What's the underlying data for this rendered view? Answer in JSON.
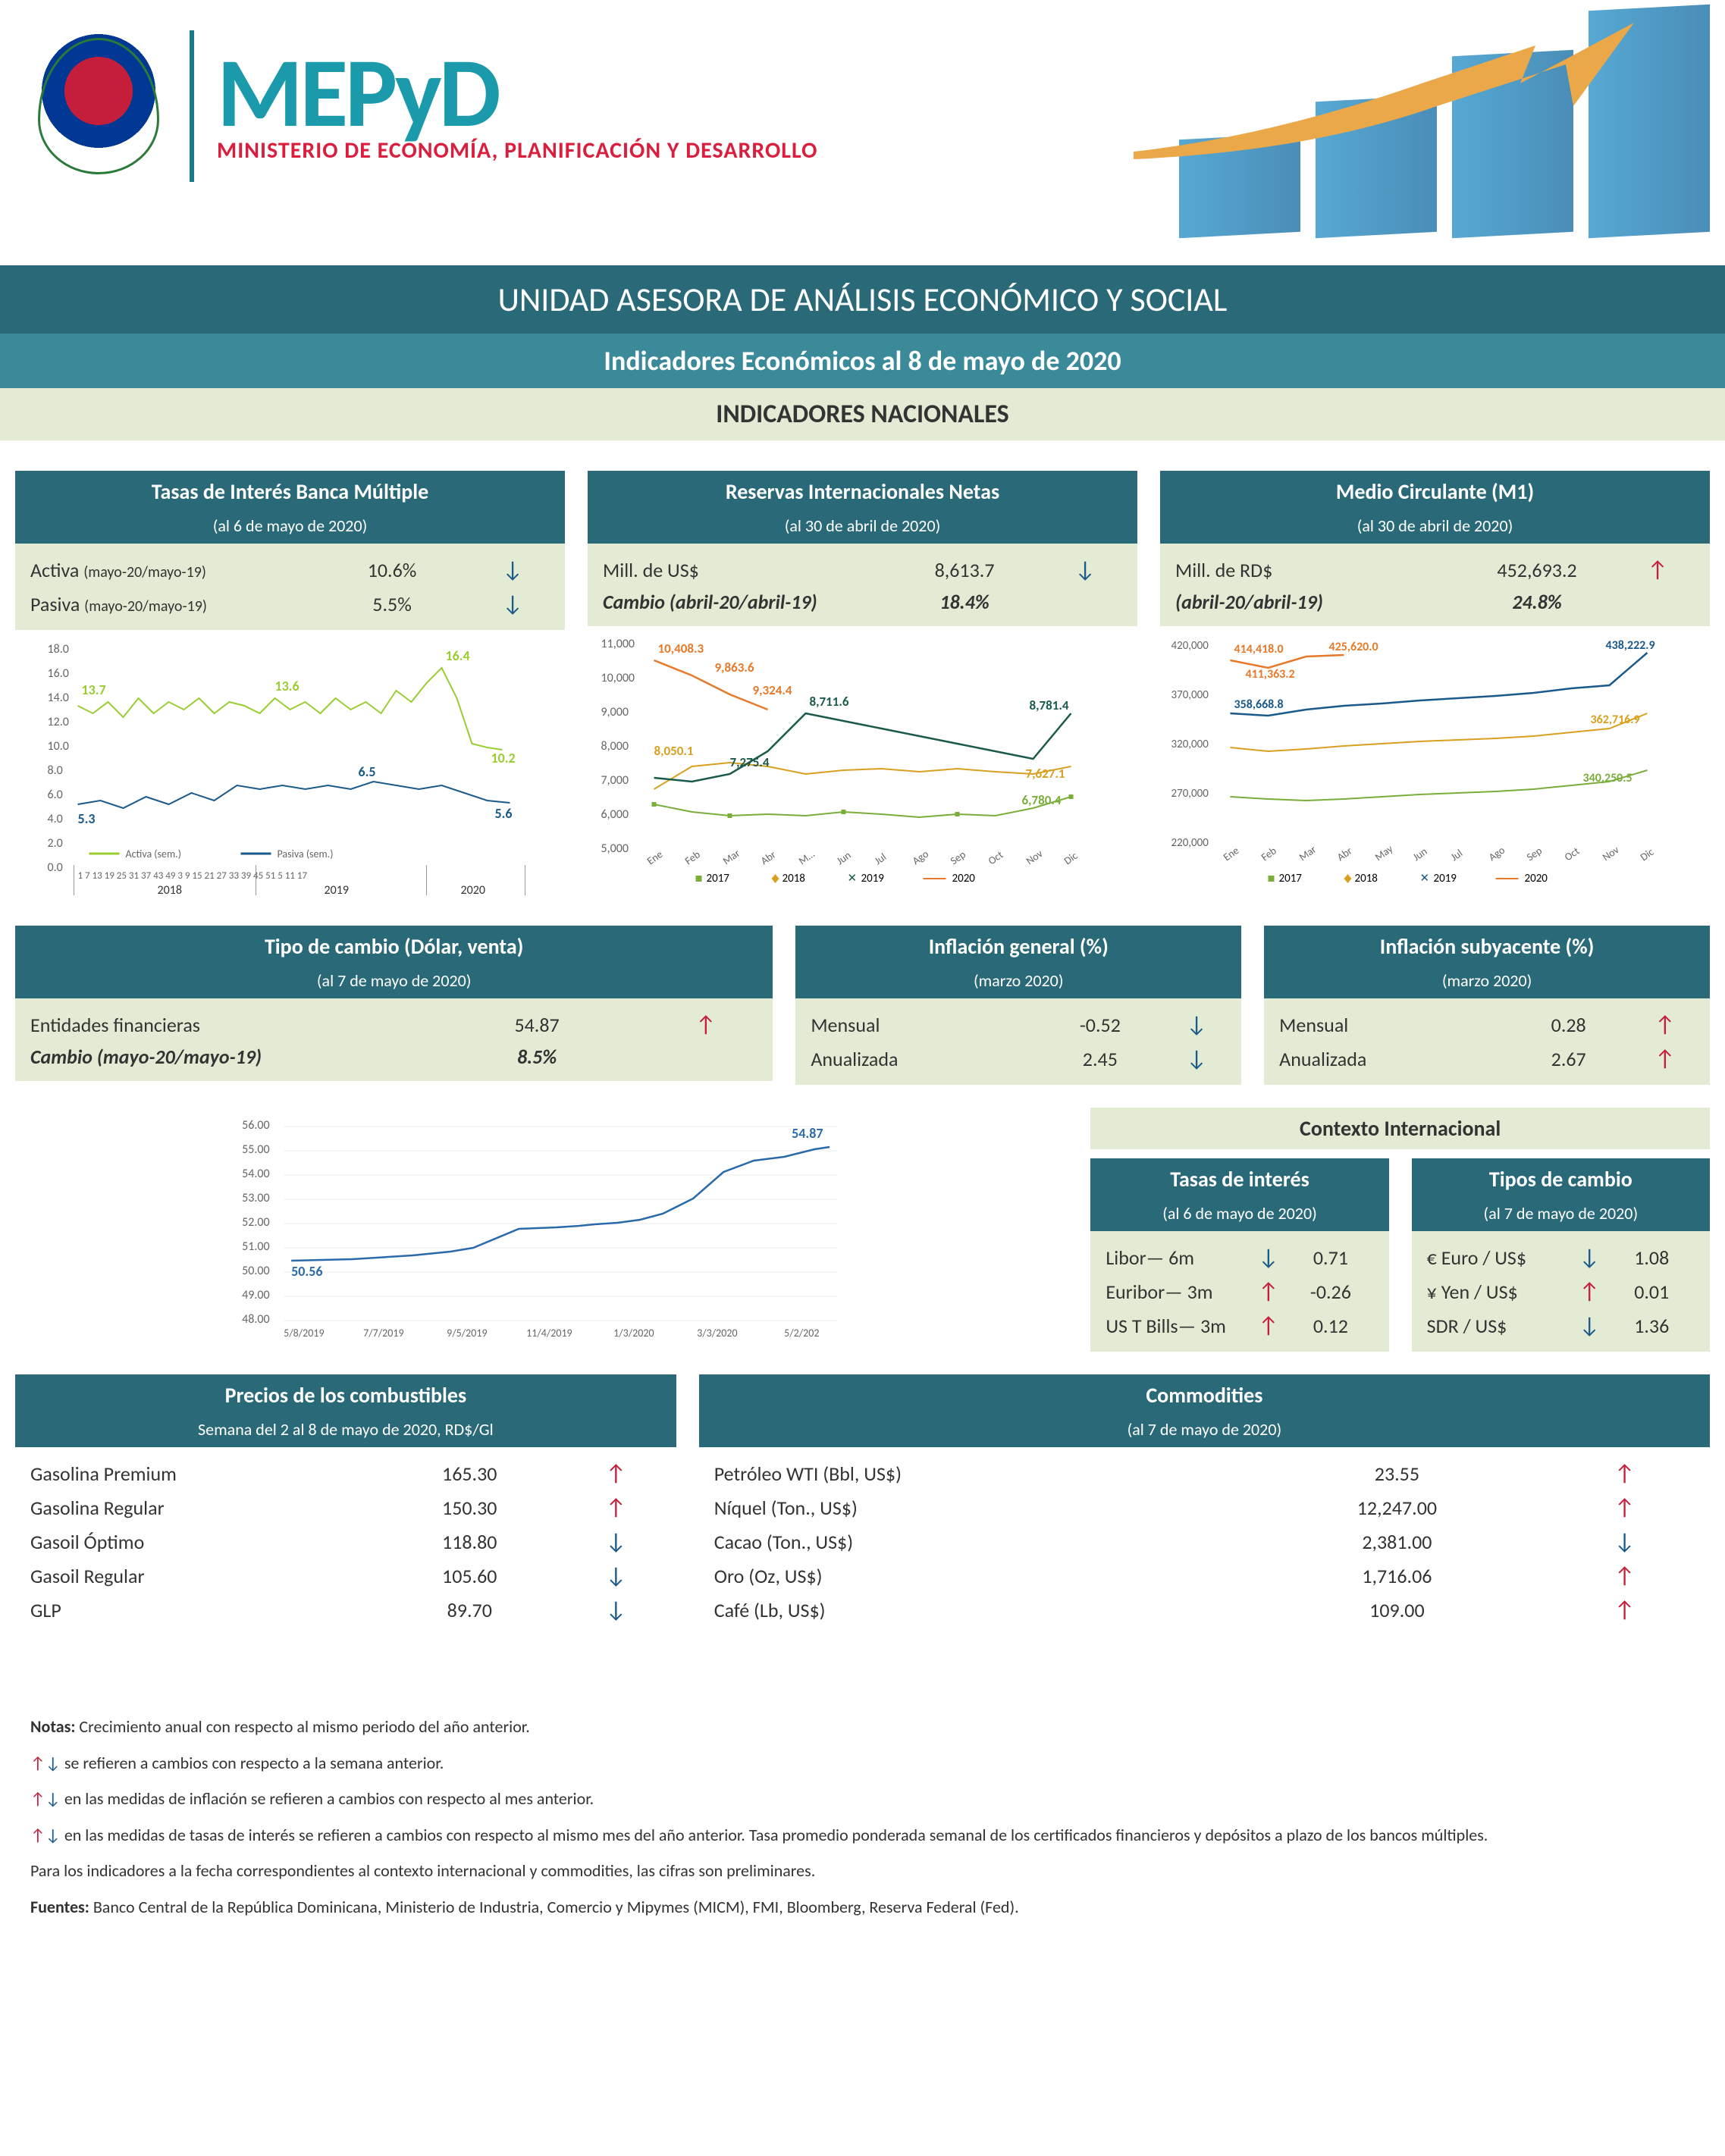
{
  "brand": {
    "main": "MEPyD",
    "sub": "MINISTERIO DE ECONOMÍA, PLANIFICACIÓN Y DESARROLLO"
  },
  "banners": {
    "unit": "UNIDAD ASESORA DE ANÁLISIS ECONÓMICO Y SOCIAL",
    "title": "Indicadores Económicos al  8 de mayo de 2020",
    "section": "INDICADORES NACIONALES",
    "context": "Contexto Internacional"
  },
  "interest": {
    "title": "Tasas de Interés Banca Múltiple",
    "asof": "(al 6 de mayo de 2020)",
    "activa_label": "Activa",
    "activa_period": "(mayo-20/mayo-19)",
    "activa_val": "10.6%",
    "activa_dir": "down",
    "pasiva_label": "Pasiva",
    "pasiva_period": "(mayo-20/mayo-19)",
    "pasiva_val": "5.5%",
    "pasiva_dir": "down",
    "chart": {
      "activa_color": "#9acd32",
      "pasiva_color": "#1a5a8a",
      "y_ticks": [
        "0.0",
        "2.0",
        "4.0",
        "6.0",
        "8.0",
        "10.0",
        "12.0",
        "14.0",
        "16.0",
        "18.0"
      ],
      "x_labels": [
        "1",
        "7",
        "13",
        "19",
        "25",
        "31",
        "37",
        "43",
        "49",
        "3",
        "9",
        "15",
        "21",
        "27",
        "33",
        "39",
        "45",
        "51",
        "5",
        "11",
        "17"
      ],
      "year_labels": [
        "2018",
        "2019",
        "2020"
      ],
      "annotations": {
        "a1": "13.7",
        "a2": "13.6",
        "a3": "16.4",
        "a4": "10.2",
        "p1": "5.3",
        "p2": "6.5",
        "p3": "5.6"
      },
      "legend": {
        "a": "Activa (sem.)",
        "p": "Pasiva (sem.)"
      }
    }
  },
  "reserves": {
    "title": "Reservas Internacionales Netas",
    "asof": "(al 30 de abril de 2020)",
    "row1_label": "Mill. de US$",
    "row1_val": "8,613.7",
    "row1_dir": "down",
    "row2_label": "Cambio (abril-20/abril-19)",
    "row2_val": "18.4%",
    "chart": {
      "y_ticks": [
        "5,000",
        "6,000",
        "7,000",
        "8,000",
        "9,000",
        "10,000",
        "11,000"
      ],
      "x_labels": [
        "Ene",
        "Feb",
        "Mar",
        "Abr",
        "M…",
        "Jun",
        "Jul",
        "Ago",
        "Sep",
        "Oct",
        "Nov",
        "Dic"
      ],
      "series": {
        "2017": {
          "color": "#7aad3a",
          "marker": "square"
        },
        "2018": {
          "color": "#d9a020",
          "marker": "triangle"
        },
        "2019": {
          "color": "#1a5a4a",
          "marker": "x"
        },
        "2020": {
          "color": "#e67a2a",
          "marker": "line"
        }
      },
      "annotations": {
        "a1": "10,408.3",
        "a2": "9,863.6",
        "a3": "9,324.4",
        "a4": "8,050.1",
        "a5": "7,275.4",
        "a6": "8,711.6",
        "a7": "8,781.4",
        "a8": "7,627.1",
        "a9": "6,780.4"
      }
    }
  },
  "m1": {
    "title": "Medio Circulante (M1)",
    "asof": "(al 30 de abril de 2020)",
    "row1_label": "Mill. de RD$",
    "row1_val": "452,693.2",
    "row1_dir": "up",
    "row2_label": "(abril-20/abril-19)",
    "row2_val": "24.8%",
    "chart": {
      "y_ticks": [
        "220,000",
        "270,000",
        "320,000",
        "370,000",
        "420,000"
      ],
      "x_labels": [
        "Ene",
        "Feb",
        "Mar",
        "Abr",
        "May",
        "Jun",
        "Jul",
        "Ago",
        "Sep",
        "Oct",
        "Nov",
        "Dic"
      ],
      "annotations": {
        "a1": "414,418.0",
        "a2": "425,620.0",
        "a3": "411,363.2",
        "a4": "358,668.8",
        "a5": "438,222.9",
        "a6": "362,716.9",
        "a7": "340,250.5"
      }
    }
  },
  "fx": {
    "title": "Tipo de cambio (Dólar, venta)",
    "asof": "(al 7 de mayo de 2020)",
    "row1_label": "Entidades financieras",
    "row1_val": "54.87",
    "row1_dir": "up",
    "row2_label": "Cambio (mayo-20/mayo-19)",
    "row2_val": "8.5%",
    "chart": {
      "y_ticks": [
        "48.00",
        "49.00",
        "50.00",
        "51.00",
        "52.00",
        "53.00",
        "54.00",
        "55.00",
        "56.00"
      ],
      "x_labels": [
        "5/8/2019",
        "7/7/2019",
        "9/5/2019",
        "11/4/2019",
        "1/3/2020",
        "3/3/2020",
        "5/2/202"
      ],
      "start": "50.56",
      "end": "54.87",
      "color": "#2a6aaa"
    }
  },
  "infl_gen": {
    "title": "Inflación general (%)",
    "asof": "(marzo 2020)",
    "r1l": "Mensual",
    "r1v": "-0.52",
    "r1d": "down",
    "r2l": "Anualizada",
    "r2v": "2.45",
    "r2d": "down"
  },
  "infl_core": {
    "title": "Inflación subyacente (%)",
    "asof": "(marzo 2020)",
    "r1l": "Mensual",
    "r1v": "0.28",
    "r1d": "up",
    "r2l": "Anualizada",
    "r2v": "2.67",
    "r2d": "up"
  },
  "intl_rates": {
    "title": "Tasas de interés",
    "asof": "(al 6 de mayo de 2020)",
    "rows": [
      {
        "l": "Libor— 6m",
        "d": "down",
        "v": "0.71"
      },
      {
        "l": "Euribor— 3m",
        "d": "up",
        "v": "-0.26"
      },
      {
        "l": "US T Bills— 3m",
        "d": "up",
        "v": "0.12"
      }
    ]
  },
  "intl_fx": {
    "title": "Tipos de cambio",
    "asof": "(al 7 de mayo de 2020)",
    "rows": [
      {
        "l": "€ Euro / US$",
        "d": "down",
        "v": "1.08"
      },
      {
        "l": "¥ Yen / US$",
        "d": "up",
        "v": "0.01"
      },
      {
        "l": "SDR / US$",
        "d": "down",
        "v": "1.36"
      }
    ]
  },
  "fuel": {
    "title": "Precios de los combustibles",
    "asof": "Semana del 2 al 8 de mayo de 2020, RD$/Gl",
    "rows": [
      {
        "l": "Gasolina Premium",
        "v": "165.30",
        "d": "up"
      },
      {
        "l": "Gasolina Regular",
        "v": "150.30",
        "d": "up"
      },
      {
        "l": "Gasoil Óptimo",
        "v": "118.80",
        "d": "down"
      },
      {
        "l": "Gasoil Regular",
        "v": "105.60",
        "d": "down"
      },
      {
        "l": "GLP",
        "v": "89.70",
        "d": "down"
      }
    ]
  },
  "commodities": {
    "title": "Commodities",
    "asof": "(al 7 de mayo de 2020)",
    "rows": [
      {
        "l": "Petróleo WTI (Bbl, US$)",
        "v": "23.55",
        "d": "up"
      },
      {
        "l": "Níquel (Ton., US$)",
        "v": "12,247.00",
        "d": "up"
      },
      {
        "l": "Cacao (Ton., US$)",
        "v": "2,381.00",
        "d": "down"
      },
      {
        "l": "Oro (Oz, US$)",
        "v": "1,716.06",
        "d": "up"
      },
      {
        "l": "Café (Lb, US$)",
        "v": "109.00",
        "d": "up"
      }
    ]
  },
  "notes": {
    "n1_b": "Notas:",
    "n1": " Crecimiento anual con respecto al mismo periodo del año anterior.",
    "n2": " se refieren a cambios con respecto a la semana anterior.",
    "n3": " en las medidas de inflación se refieren a cambios con respecto al mes anterior.",
    "n4": " en las medidas de tasas de interés se refieren a cambios con respecto al mismo mes del año anterior. Tasa promedio ponderada semanal de los certificados financieros y depósitos a plazo de los bancos múltiples.",
    "n5": "Para los indicadores a la fecha correspondientes al contexto internacional y commodities, las cifras son preliminares.",
    "n6_b": "Fuentes:",
    "n6": " Banco Central de la República Dominicana, Ministerio de Industria, Comercio y Mipymes (MICM), FMI, Bloomberg, Reserva Federal (Fed)."
  },
  "legend_years": {
    "y17": "2017",
    "y18": "2018",
    "y19": "2019",
    "y20": "2020"
  }
}
